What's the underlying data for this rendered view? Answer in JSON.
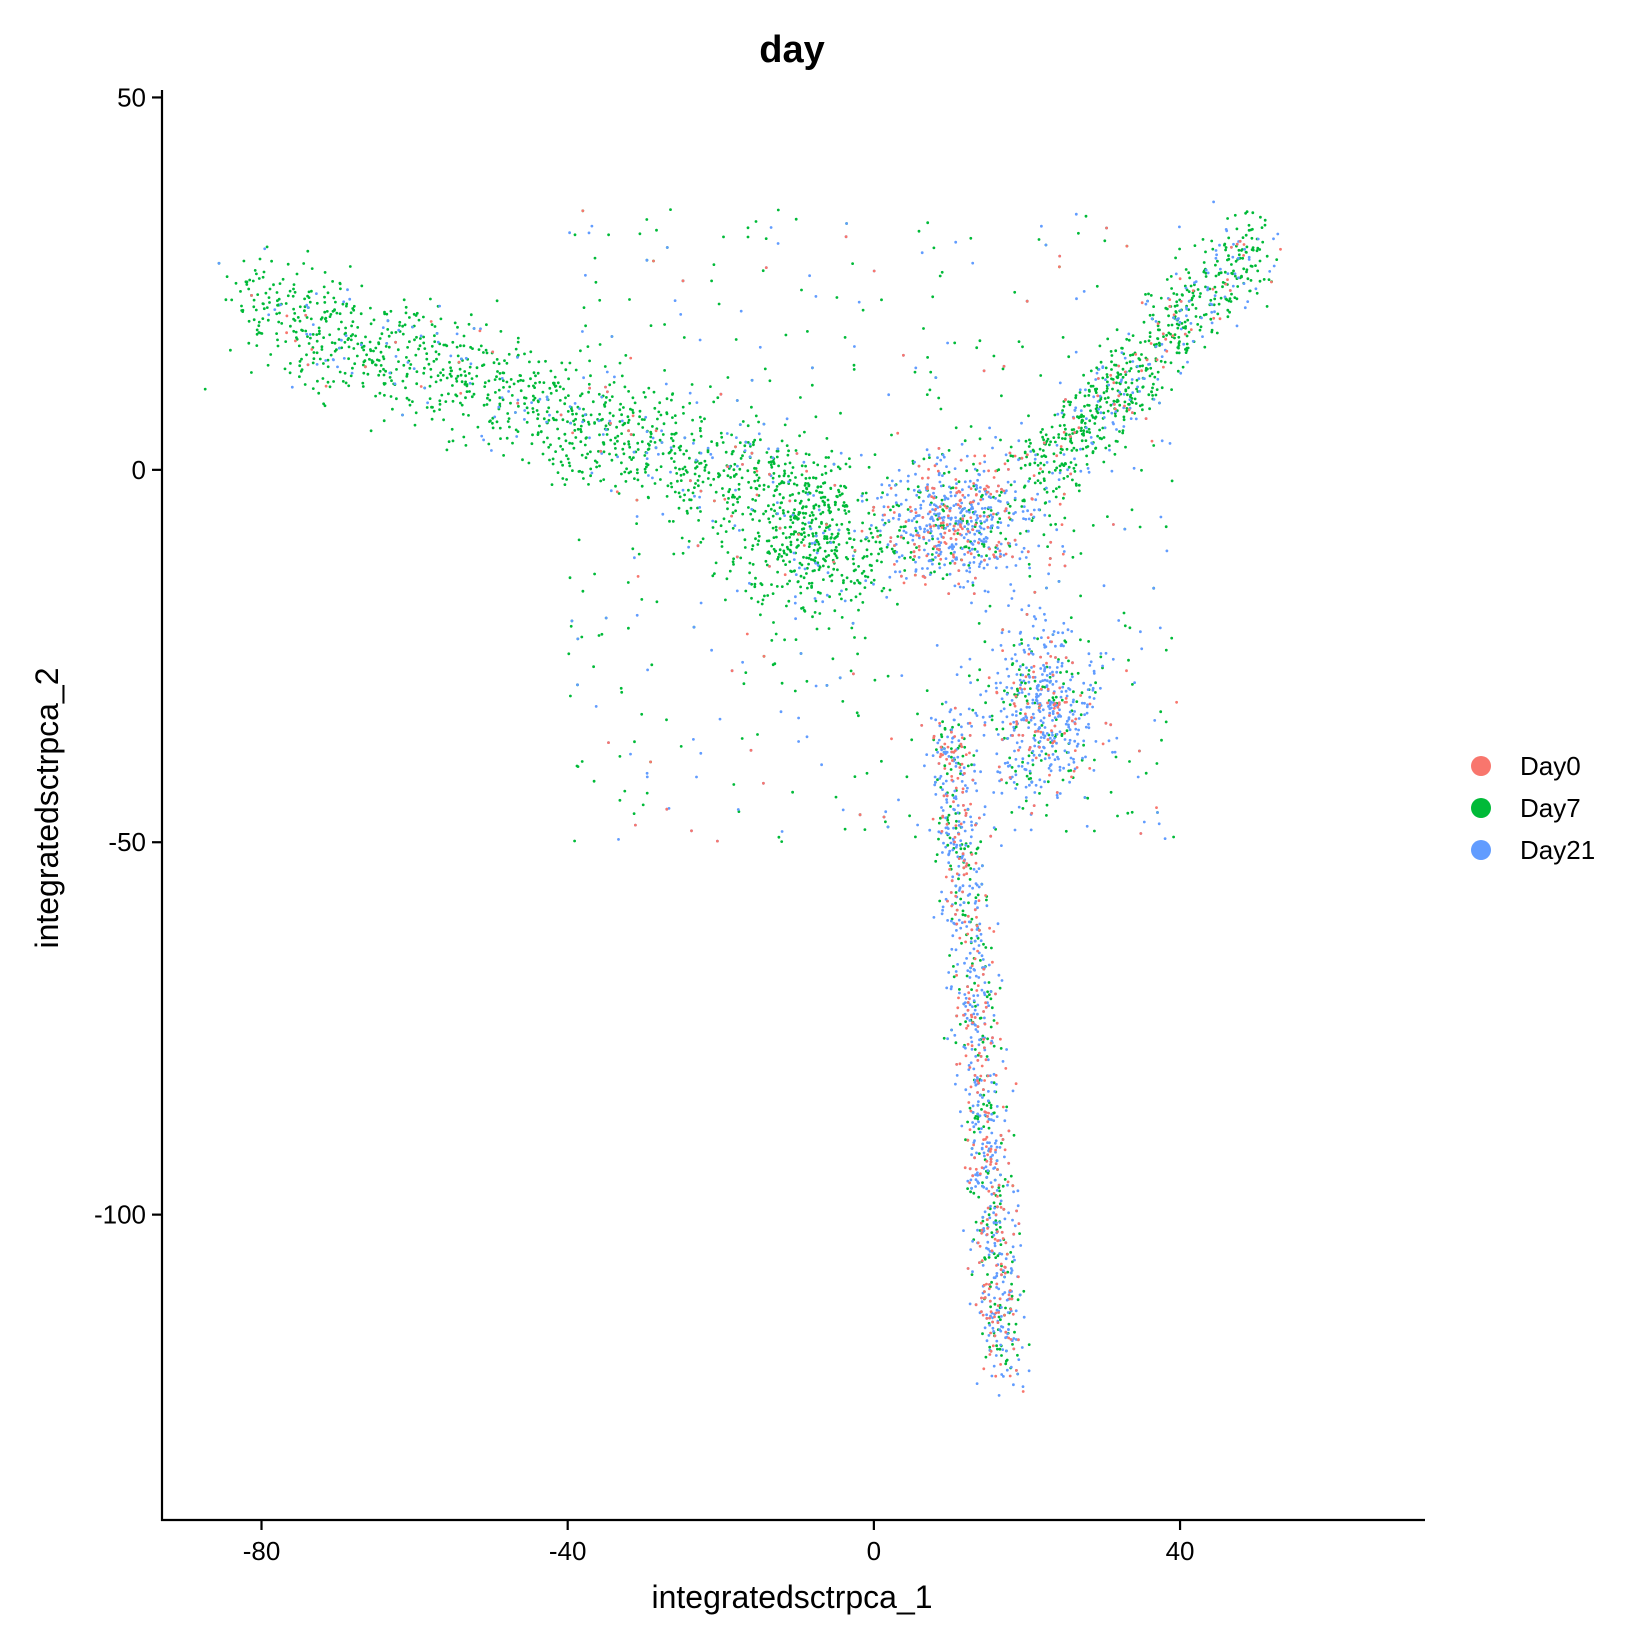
{
  "chart_data": {
    "type": "scatter",
    "title": "day",
    "xlabel": "integratedsctrpca_1",
    "ylabel": "integratedsctrpca_2",
    "xlim": [
      -93,
      72
    ],
    "ylim": [
      -141,
      51
    ],
    "x_ticks": [
      -80,
      -40,
      0,
      40
    ],
    "y_ticks": [
      50,
      0,
      -50,
      -100
    ],
    "x_tick_labels": [
      "-80",
      "-40",
      "0",
      "40"
    ],
    "y_tick_labels": [
      "50",
      "0",
      "-50",
      "-100"
    ],
    "grid": false,
    "legend_position": "right",
    "series": [
      {
        "name": "Day0",
        "color": "#F8766D",
        "count": 700
      },
      {
        "name": "Day7",
        "color": "#00BA38",
        "count": 13000
      },
      {
        "name": "Day21",
        "color": "#619CFF",
        "count": 2600
      }
    ],
    "point_density_regions": [
      {
        "label": "upper-left arm",
        "from": [
          -82,
          22
        ],
        "to": [
          -5,
          -5
        ],
        "spread": 4
      },
      {
        "label": "central blob",
        "center": [
          -8,
          -10
        ],
        "spread": [
          6,
          5
        ]
      },
      {
        "label": "upper-right arm",
        "from": [
          21,
          -1
        ],
        "to": [
          50,
          30
        ],
        "spread": 3
      },
      {
        "label": "center cluster",
        "center": [
          11,
          -7
        ],
        "spread": [
          5,
          4
        ]
      },
      {
        "label": "right cluster",
        "center": [
          22,
          -33
        ],
        "spread": [
          4,
          6
        ]
      },
      {
        "label": "lower arm",
        "from": [
          10,
          -35
        ],
        "to": [
          17,
          -120
        ],
        "spread": 2.5
      },
      {
        "label": "scattered background",
        "xrange": [
          -40,
          40
        ],
        "yrange": [
          -50,
          35
        ]
      }
    ]
  }
}
